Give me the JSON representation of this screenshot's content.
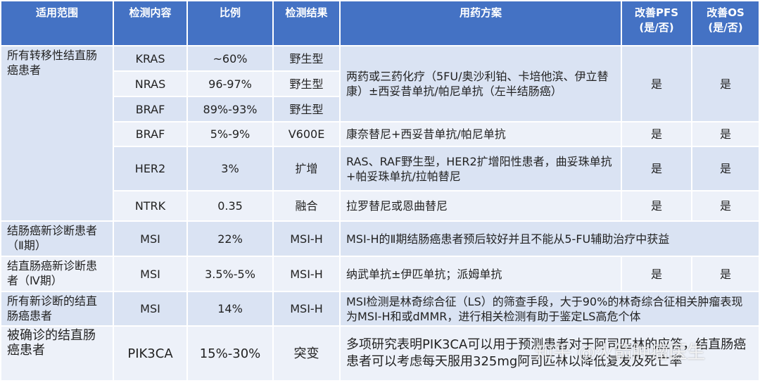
{
  "table": {
    "header": [
      "适用范围",
      "检测内容",
      "比例",
      "检测结果",
      "用药方案",
      "改善PFS\n(是/否)",
      "改善OS\n(是/否)"
    ],
    "rows": [
      [
        "所有转移性结直肠癌患者",
        "KRAS",
        "~60%",
        "野生型",
        "两药或三药化疗（5FU/奥沙利铂、卡培他滨、伊立替康）±西妥昔单抗/帕尼单抗（左半结肠癌）",
        "是",
        "是"
      ],
      [
        "NRAS",
        "96-97%",
        "野生型"
      ],
      [
        "BRAF",
        "89%-93%",
        "野生型"
      ],
      [
        "BRAF",
        "5%-9%",
        "V600E",
        "康奈替尼+西妥昔单抗/帕尼单抗",
        "是",
        "是"
      ],
      [
        "HER2",
        "3%",
        "扩增",
        "RAS、RAF野生型，HER2扩增阳性患者，曲妥珠单抗+帕妥珠单抗/拉帕替尼",
        "是",
        "是"
      ],
      [
        "NTRK",
        "0.35",
        "融合",
        "拉罗替尼或恩曲替尼",
        "是",
        "是"
      ],
      [
        "结肠癌新诊断患者（Ⅱ期）",
        "MSI",
        "22%",
        "MSI-H",
        "MSI-H的Ⅱ期结肠癌患者预后较好并且不能从5-FU辅助治疗中获益"
      ],
      [
        "结直肠癌新诊断患者（Ⅳ期）",
        "MSI",
        "3.5%-5%",
        "MSI-H",
        "纳武单抗±伊匹单抗；派姆单抗",
        "是",
        "是"
      ],
      [
        "所有新诊断的结直肠癌患者",
        "MSI",
        "14%",
        "MSI-H",
        "MSI检测是林奇综合征（LS）的筛查手段，大于90%的林奇综合征相关肿瘤表现为MSI-H和或dMMR，进行相关检测有助于鉴定LS高危个体"
      ],
      [
        "被确诊的结直肠癌患者",
        "PIK3CA",
        "15%-30%",
        "突变",
        "多项研究表明PIK3CA可以用于预测患者对于阿司匹林的应答，结直肠癌患者可以考虑每天服用325mg阿司匹林以降低复发及死亡率"
      ]
    ]
  },
  "watermark": "知乎 @火箭肿瘤医生"
}
